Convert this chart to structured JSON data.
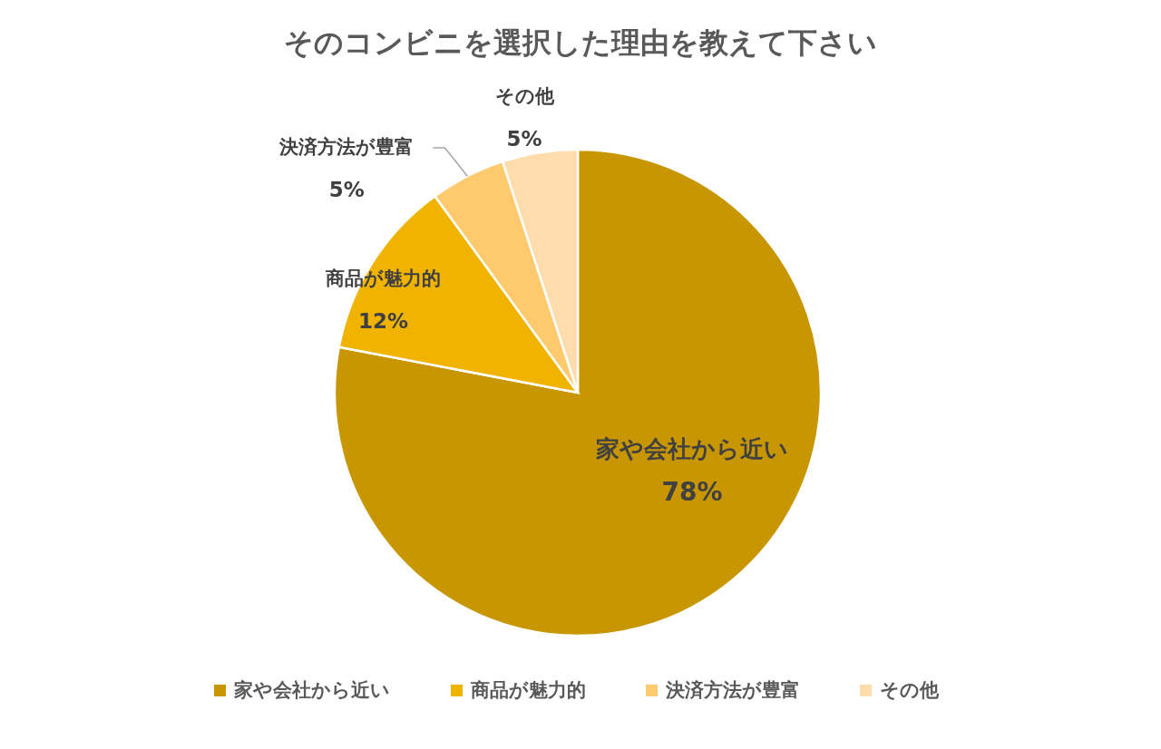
{
  "chart_data": {
    "type": "pie",
    "title": "そのコンビニを選択した理由を教えて下さい",
    "categories": [
      "家や会社から近い",
      "商品が魅力的",
      "決済方法が豊富",
      "その他"
    ],
    "values": [
      78,
      12,
      5,
      5
    ],
    "colors": [
      "#c89600",
      "#f0b400",
      "#ffc96e",
      "#ffdcab"
    ],
    "value_labels": [
      "78%",
      "12%",
      "5%",
      "5%"
    ],
    "legend": "bottom"
  }
}
